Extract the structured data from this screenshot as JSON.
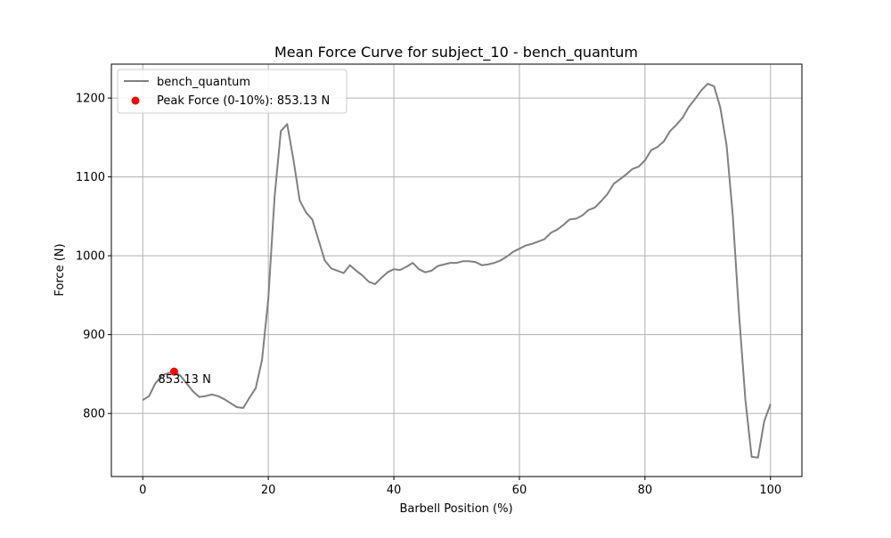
{
  "chart_data": {
    "type": "line",
    "title": "Mean Force Curve for subject_10 - bench_quantum",
    "xlabel": "Barbell Position (%)",
    "ylabel": "Force (N)",
    "xlim": [
      -5,
      105
    ],
    "ylim": [
      720,
      1243
    ],
    "xticks": [
      0,
      20,
      40,
      60,
      80,
      100
    ],
    "yticks": [
      800,
      900,
      1000,
      1100,
      1200
    ],
    "grid": true,
    "legend_position": "upper left",
    "series": [
      {
        "name": "bench_quantum",
        "color": "#808080",
        "x": [
          0,
          1,
          2,
          3,
          4,
          5,
          6,
          7,
          8,
          9,
          10,
          11,
          12,
          13,
          14,
          15,
          16,
          17,
          18,
          19,
          20,
          21,
          22,
          23,
          24,
          25,
          26,
          27,
          28,
          29,
          30,
          31,
          32,
          33,
          34,
          35,
          36,
          37,
          38,
          39,
          40,
          41,
          42,
          43,
          44,
          45,
          46,
          47,
          48,
          49,
          50,
          51,
          52,
          53,
          54,
          55,
          56,
          57,
          58,
          59,
          60,
          61,
          62,
          63,
          64,
          65,
          66,
          67,
          68,
          69,
          70,
          71,
          72,
          73,
          74,
          75,
          76,
          77,
          78,
          79,
          80,
          81,
          82,
          83,
          84,
          85,
          86,
          87,
          88,
          89,
          90,
          91,
          92,
          93,
          94,
          95,
          96,
          97,
          98,
          99,
          100
        ],
        "y": [
          817,
          822,
          838,
          848,
          851,
          853,
          848,
          838,
          828,
          821,
          822,
          824,
          822,
          818,
          813,
          808,
          807,
          820,
          832,
          868,
          945,
          1075,
          1158,
          1167,
          1122,
          1070,
          1055,
          1046,
          1020,
          994,
          984,
          981,
          978,
          988,
          981,
          975,
          967,
          964,
          972,
          979,
          983,
          982,
          986,
          991,
          983,
          979,
          981,
          987,
          989,
          991,
          991,
          993,
          993,
          992,
          988,
          989,
          991,
          994,
          999,
          1005,
          1009,
          1013,
          1015,
          1018,
          1021,
          1029,
          1033,
          1039,
          1046,
          1047,
          1051,
          1058,
          1061,
          1069,
          1078,
          1091,
          1097,
          1103,
          1110,
          1113,
          1121,
          1134,
          1138,
          1145,
          1158,
          1166,
          1175,
          1189,
          1199,
          1210,
          1218,
          1215,
          1188,
          1140,
          1050,
          925,
          817,
          745,
          744,
          790,
          812
        ]
      }
    ],
    "peak": {
      "label": "Peak Force (0-10%): 853.13 N",
      "annotation": "853.13 N",
      "x": 5,
      "y": 853.13,
      "color": "#ff0000"
    }
  }
}
